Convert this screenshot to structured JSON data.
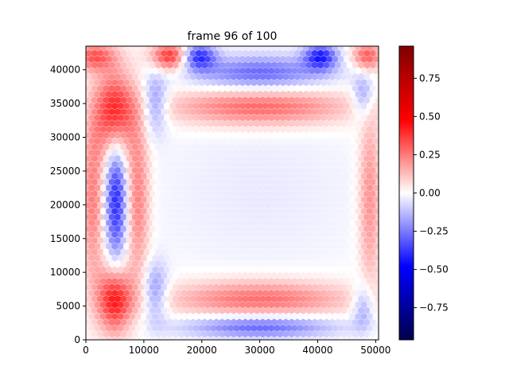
{
  "chart_data": {
    "type": "heatmap",
    "title": "frame 96 of 100",
    "xlabel": "",
    "ylabel": "",
    "xlim": [
      0,
      50500
    ],
    "ylim": [
      0,
      43500
    ],
    "xticks": [
      0,
      10000,
      20000,
      30000,
      40000,
      50000
    ],
    "xtick_labels": [
      "0",
      "10000",
      "20000",
      "30000",
      "40000",
      "50000"
    ],
    "yticks": [
      0,
      5000,
      10000,
      15000,
      20000,
      25000,
      30000,
      35000,
      40000
    ],
    "ytick_labels": [
      "0",
      "5000",
      "10000",
      "15000",
      "20000",
      "25000",
      "30000",
      "35000",
      "40000"
    ],
    "colorbar": {
      "cmap": "seismic",
      "vmin": -0.96,
      "vmax": 0.96,
      "ticks": [
        -0.75,
        -0.5,
        -0.25,
        0.0,
        0.25,
        0.5,
        0.75
      ],
      "tick_labels": [
        "−0.75",
        "−0.50",
        "−0.25",
        "0.00",
        "0.25",
        "0.50",
        "0.75"
      ]
    },
    "grid": false,
    "cell_shape": "hexagon",
    "hex_spacing": 1000,
    "field_features": [
      {
        "x": 5000,
        "y": 33500,
        "value": 0.45,
        "sx": 2200,
        "sy": 4500
      },
      {
        "x": 14500,
        "y": 42000,
        "value": 0.4,
        "sx": 2200,
        "sy": 1500
      },
      {
        "x": 1500,
        "y": 42000,
        "value": 0.3,
        "sx": 2500,
        "sy": 1500
      },
      {
        "x": 48500,
        "y": 42000,
        "value": 0.3,
        "sx": 1800,
        "sy": 1500
      },
      {
        "x": 19500,
        "y": 42000,
        "value": -0.38,
        "sx": 2000,
        "sy": 1400
      },
      {
        "x": 40500,
        "y": 42000,
        "value": -0.4,
        "sx": 2000,
        "sy": 1400
      },
      {
        "x": 30000,
        "y": 39500,
        "value": -0.28,
        "sx": 8000,
        "sy": 1800
      },
      {
        "x": 30000,
        "y": 34500,
        "value": 0.3,
        "sx": 11000,
        "sy": 2000
      },
      {
        "x": 5000,
        "y": 6000,
        "value": 0.45,
        "sx": 2000,
        "sy": 3500
      },
      {
        "x": 30000,
        "y": 2000,
        "value": -0.3,
        "sx": 9000,
        "sy": 1200
      },
      {
        "x": 30000,
        "y": 6000,
        "value": 0.28,
        "sx": 11000,
        "sy": 2000
      },
      {
        "x": 5200,
        "y": 21000,
        "value": -0.4,
        "sx": 1300,
        "sy": 7000
      },
      {
        "x": 1200,
        "y": 21000,
        "value": 0.25,
        "sx": 1400,
        "sy": 9000
      },
      {
        "x": 9000,
        "y": 21000,
        "value": 0.25,
        "sx": 1400,
        "sy": 9000
      },
      {
        "x": 49000,
        "y": 21000,
        "value": 0.22,
        "sx": 1300,
        "sy": 10000
      },
      {
        "x": 12000,
        "y": 35000,
        "value": -0.22,
        "sx": 1500,
        "sy": 3000
      },
      {
        "x": 12000,
        "y": 7000,
        "value": -0.22,
        "sx": 1500,
        "sy": 3000
      },
      {
        "x": 48000,
        "y": 36000,
        "value": -0.22,
        "sx": 1300,
        "sy": 2500
      },
      {
        "x": 48000,
        "y": 5000,
        "value": -0.22,
        "sx": 1300,
        "sy": 2500
      },
      {
        "x": 30000,
        "y": 22000,
        "value": -0.04,
        "sx": 14000,
        "sy": 10000
      }
    ]
  }
}
